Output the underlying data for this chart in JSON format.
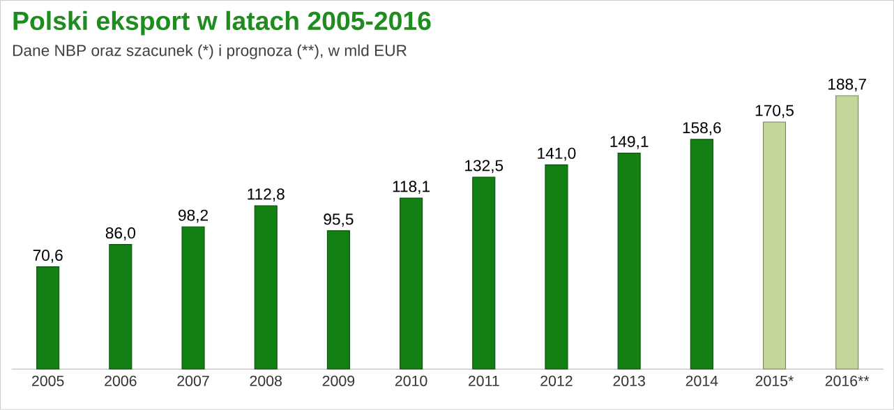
{
  "chart_data": {
    "type": "bar",
    "title": "Polski eksport w latach 2005-2016",
    "subtitle": "Dane NBP oraz szacunek (*) i prognoza (**), w mld EUR",
    "categories": [
      "2005",
      "2006",
      "2007",
      "2008",
      "2009",
      "2010",
      "2011",
      "2012",
      "2013",
      "2014",
      "2015*",
      "2016**"
    ],
    "values": [
      70.6,
      86.0,
      98.2,
      112.8,
      95.5,
      118.1,
      132.5,
      141.0,
      149.1,
      158.6,
      170.5,
      188.7
    ],
    "value_labels": [
      "70,6",
      "86,0",
      "98,2",
      "112,8",
      "95,5",
      "118,1",
      "132,5",
      "141,0",
      "149,1",
      "158,6",
      "170,5",
      "188,7"
    ],
    "colors": [
      "#128012",
      "#128012",
      "#128012",
      "#128012",
      "#128012",
      "#128012",
      "#128012",
      "#128012",
      "#128012",
      "#128012",
      "#c4d79b",
      "#c4d79b"
    ]
  }
}
